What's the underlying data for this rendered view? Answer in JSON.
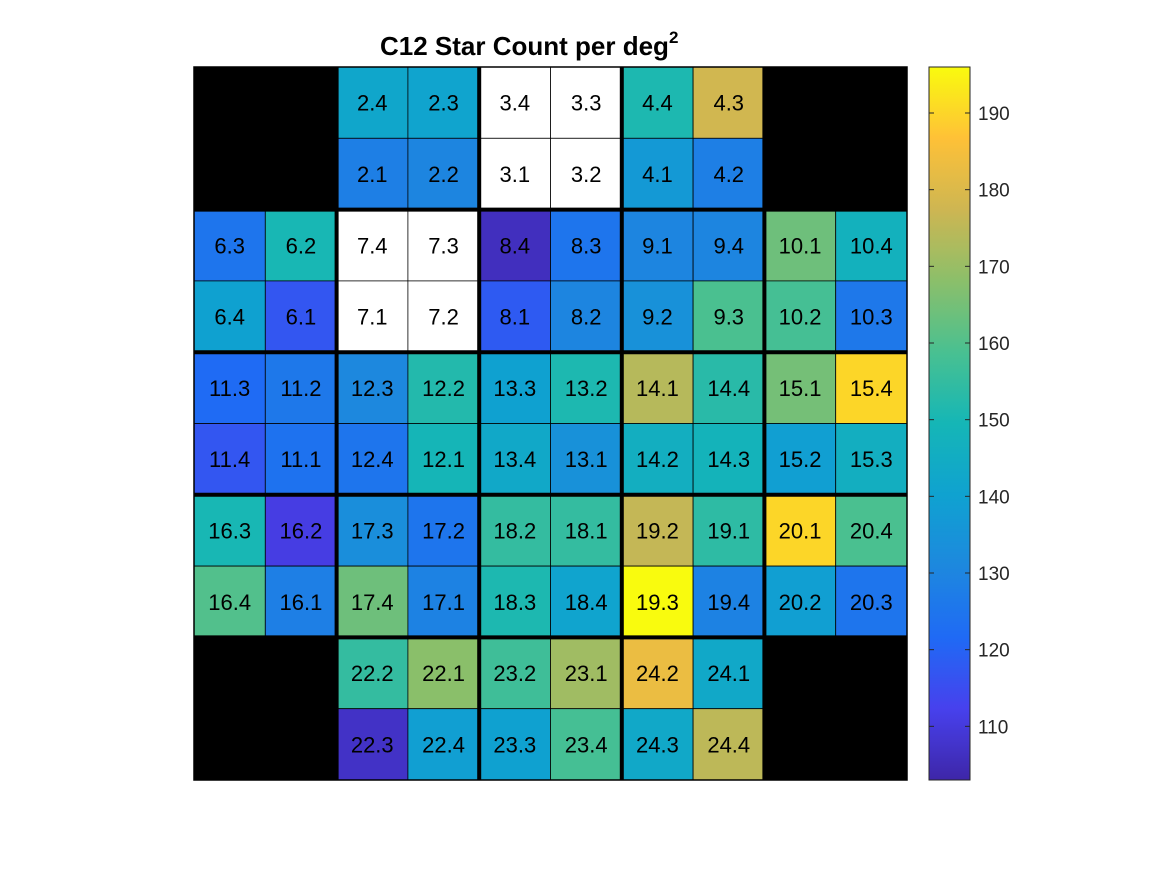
{
  "chart_data": {
    "type": "heatmap",
    "title": "C12 Star Count per deg",
    "title_superscript": "2",
    "colormap": "parula",
    "colorbar": {
      "ticks": [
        110,
        120,
        130,
        140,
        150,
        160,
        170,
        180,
        190
      ],
      "range": [
        103,
        196
      ]
    },
    "modules": [
      {
        "row": 0,
        "col": 1,
        "channels": [
          {
            "label": "2.4",
            "sub": [
              0,
              0
            ],
            "value": 142
          },
          {
            "label": "2.3",
            "sub": [
              0,
              1
            ],
            "value": 141
          },
          {
            "label": "2.1",
            "sub": [
              1,
              0
            ],
            "value": 128
          },
          {
            "label": "2.2",
            "sub": [
              1,
              1
            ],
            "value": 130
          }
        ]
      },
      {
        "row": 0,
        "col": 2,
        "channels": [
          {
            "label": "3.4",
            "sub": [
              0,
              0
            ],
            "value": null
          },
          {
            "label": "3.3",
            "sub": [
              0,
              1
            ],
            "value": null
          },
          {
            "label": "3.1",
            "sub": [
              1,
              0
            ],
            "value": null
          },
          {
            "label": "3.2",
            "sub": [
              1,
              1
            ],
            "value": null
          }
        ]
      },
      {
        "row": 0,
        "col": 3,
        "channels": [
          {
            "label": "4.4",
            "sub": [
              0,
              0
            ],
            "value": 151
          },
          {
            "label": "4.3",
            "sub": [
              0,
              1
            ],
            "value": 178
          },
          {
            "label": "4.1",
            "sub": [
              1,
              0
            ],
            "value": 137
          },
          {
            "label": "4.2",
            "sub": [
              1,
              1
            ],
            "value": 128
          }
        ]
      },
      {
        "row": 1,
        "col": 0,
        "channels": [
          {
            "label": "6.3",
            "sub": [
              0,
              0
            ],
            "value": 125
          },
          {
            "label": "6.2",
            "sub": [
              0,
              1
            ],
            "value": 150
          },
          {
            "label": "6.4",
            "sub": [
              1,
              0
            ],
            "value": 140
          },
          {
            "label": "6.1",
            "sub": [
              1,
              1
            ],
            "value": 117
          }
        ]
      },
      {
        "row": 1,
        "col": 1,
        "channels": [
          {
            "label": "7.4",
            "sub": [
              0,
              0
            ],
            "value": null
          },
          {
            "label": "7.3",
            "sub": [
              0,
              1
            ],
            "value": null
          },
          {
            "label": "7.1",
            "sub": [
              1,
              0
            ],
            "value": null
          },
          {
            "label": "7.2",
            "sub": [
              1,
              1
            ],
            "value": null
          }
        ]
      },
      {
        "row": 1,
        "col": 2,
        "channels": [
          {
            "label": "8.4",
            "sub": [
              0,
              0
            ],
            "value": 106
          },
          {
            "label": "8.3",
            "sub": [
              0,
              1
            ],
            "value": 125
          },
          {
            "label": "8.1",
            "sub": [
              1,
              0
            ],
            "value": 118
          },
          {
            "label": "8.2",
            "sub": [
              1,
              1
            ],
            "value": 130
          }
        ]
      },
      {
        "row": 1,
        "col": 3,
        "channels": [
          {
            "label": "9.1",
            "sub": [
              0,
              0
            ],
            "value": 130
          },
          {
            "label": "9.4",
            "sub": [
              0,
              1
            ],
            "value": 130
          },
          {
            "label": "9.2",
            "sub": [
              1,
              0
            ],
            "value": 134
          },
          {
            "label": "9.3",
            "sub": [
              1,
              1
            ],
            "value": 159
          }
        ]
      },
      {
        "row": 1,
        "col": 4,
        "channels": [
          {
            "label": "10.1",
            "sub": [
              0,
              0
            ],
            "value": 164
          },
          {
            "label": "10.4",
            "sub": [
              0,
              1
            ],
            "value": 147
          },
          {
            "label": "10.2",
            "sub": [
              1,
              0
            ],
            "value": 158
          },
          {
            "label": "10.3",
            "sub": [
              1,
              1
            ],
            "value": 126
          }
        ]
      },
      {
        "row": 2,
        "col": 0,
        "channels": [
          {
            "label": "11.3",
            "sub": [
              0,
              0
            ],
            "value": 122
          },
          {
            "label": "11.2",
            "sub": [
              0,
              1
            ],
            "value": 126
          },
          {
            "label": "11.4",
            "sub": [
              1,
              0
            ],
            "value": 117
          },
          {
            "label": "11.1",
            "sub": [
              1,
              1
            ],
            "value": 124
          }
        ]
      },
      {
        "row": 2,
        "col": 1,
        "channels": [
          {
            "label": "12.3",
            "sub": [
              0,
              0
            ],
            "value": 131
          },
          {
            "label": "12.2",
            "sub": [
              0,
              1
            ],
            "value": 152
          },
          {
            "label": "12.4",
            "sub": [
              1,
              0
            ],
            "value": 125
          },
          {
            "label": "12.1",
            "sub": [
              1,
              1
            ],
            "value": 149
          }
        ]
      },
      {
        "row": 2,
        "col": 2,
        "channels": [
          {
            "label": "13.3",
            "sub": [
              0,
              0
            ],
            "value": 140
          },
          {
            "label": "13.2",
            "sub": [
              0,
              1
            ],
            "value": 151
          },
          {
            "label": "13.4",
            "sub": [
              1,
              0
            ],
            "value": 143
          },
          {
            "label": "13.1",
            "sub": [
              1,
              1
            ],
            "value": 134
          }
        ]
      },
      {
        "row": 2,
        "col": 3,
        "channels": [
          {
            "label": "14.1",
            "sub": [
              0,
              0
            ],
            "value": 174
          },
          {
            "label": "14.4",
            "sub": [
              0,
              1
            ],
            "value": 153
          },
          {
            "label": "14.2",
            "sub": [
              1,
              0
            ],
            "value": 146
          },
          {
            "label": "14.3",
            "sub": [
              1,
              1
            ],
            "value": 148
          }
        ]
      },
      {
        "row": 2,
        "col": 4,
        "channels": [
          {
            "label": "15.1",
            "sub": [
              0,
              0
            ],
            "value": 165
          },
          {
            "label": "15.4",
            "sub": [
              0,
              1
            ],
            "value": 190
          },
          {
            "label": "15.2",
            "sub": [
              1,
              0
            ],
            "value": 139
          },
          {
            "label": "15.3",
            "sub": [
              1,
              1
            ],
            "value": 146
          }
        ]
      },
      {
        "row": 3,
        "col": 0,
        "channels": [
          {
            "label": "16.3",
            "sub": [
              0,
              0
            ],
            "value": 150
          },
          {
            "label": "16.2",
            "sub": [
              0,
              1
            ],
            "value": 111
          },
          {
            "label": "16.4",
            "sub": [
              1,
              0
            ],
            "value": 160
          },
          {
            "label": "16.1",
            "sub": [
              1,
              1
            ],
            "value": 128
          }
        ]
      },
      {
        "row": 3,
        "col": 1,
        "channels": [
          {
            "label": "17.3",
            "sub": [
              0,
              0
            ],
            "value": 133
          },
          {
            "label": "17.2",
            "sub": [
              0,
              1
            ],
            "value": 125
          },
          {
            "label": "17.4",
            "sub": [
              1,
              0
            ],
            "value": 164
          },
          {
            "label": "17.1",
            "sub": [
              1,
              1
            ],
            "value": 129
          }
        ]
      },
      {
        "row": 3,
        "col": 2,
        "channels": [
          {
            "label": "18.2",
            "sub": [
              0,
              0
            ],
            "value": 155
          },
          {
            "label": "18.1",
            "sub": [
              0,
              1
            ],
            "value": 155
          },
          {
            "label": "18.3",
            "sub": [
              1,
              0
            ],
            "value": 151
          },
          {
            "label": "18.4",
            "sub": [
              1,
              1
            ],
            "value": 141
          }
        ]
      },
      {
        "row": 3,
        "col": 3,
        "channels": [
          {
            "label": "19.2",
            "sub": [
              0,
              0
            ],
            "value": 176
          },
          {
            "label": "19.1",
            "sub": [
              0,
              1
            ],
            "value": 154
          },
          {
            "label": "19.3",
            "sub": [
              1,
              0
            ],
            "value": 196
          },
          {
            "label": "19.4",
            "sub": [
              1,
              1
            ],
            "value": 129
          }
        ]
      },
      {
        "row": 3,
        "col": 4,
        "channels": [
          {
            "label": "20.1",
            "sub": [
              0,
              0
            ],
            "value": 190
          },
          {
            "label": "20.4",
            "sub": [
              0,
              1
            ],
            "value": 159
          },
          {
            "label": "20.2",
            "sub": [
              1,
              0
            ],
            "value": 139
          },
          {
            "label": "20.3",
            "sub": [
              1,
              1
            ],
            "value": 125
          }
        ]
      },
      {
        "row": 4,
        "col": 1,
        "channels": [
          {
            "label": "22.2",
            "sub": [
              0,
              0
            ],
            "value": 155
          },
          {
            "label": "22.1",
            "sub": [
              0,
              1
            ],
            "value": 168
          },
          {
            "label": "22.3",
            "sub": [
              1,
              0
            ],
            "value": 107
          },
          {
            "label": "22.4",
            "sub": [
              1,
              1
            ],
            "value": 139
          }
        ]
      },
      {
        "row": 4,
        "col": 2,
        "channels": [
          {
            "label": "23.2",
            "sub": [
              0,
              0
            ],
            "value": 157
          },
          {
            "label": "23.1",
            "sub": [
              0,
              1
            ],
            "value": 171
          },
          {
            "label": "23.3",
            "sub": [
              1,
              0
            ],
            "value": 140
          },
          {
            "label": "23.4",
            "sub": [
              1,
              1
            ],
            "value": 158
          }
        ]
      },
      {
        "row": 4,
        "col": 3,
        "channels": [
          {
            "label": "24.2",
            "sub": [
              0,
              0
            ],
            "value": 183
          },
          {
            "label": "24.1",
            "sub": [
              0,
              1
            ],
            "value": 143
          },
          {
            "label": "24.3",
            "sub": [
              1,
              0
            ],
            "value": 143
          },
          {
            "label": "24.4",
            "sub": [
              1,
              1
            ],
            "value": 175
          }
        ]
      }
    ],
    "missing_modules": [
      {
        "row": 0,
        "col": 0
      },
      {
        "row": 0,
        "col": 4
      },
      {
        "row": 4,
        "col": 0
      },
      {
        "row": 4,
        "col": 4
      }
    ]
  }
}
